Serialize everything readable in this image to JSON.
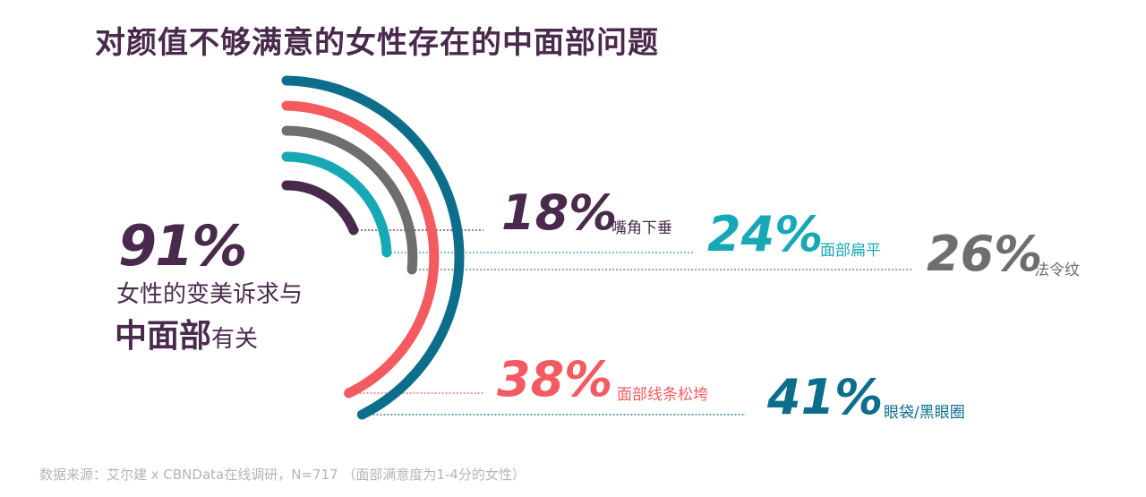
{
  "title": "对颜值不够满意的女性存在的中面部问题",
  "summary": {
    "percent": "91%",
    "line1": "女性的变美诉求与",
    "line2_bold": "中面部",
    "line2_rest": "有关"
  },
  "chart_data": {
    "type": "radial-bar",
    "title": "对颜值不够满意的女性存在的中面部问题",
    "series": [
      {
        "label": "嘴角下垂",
        "value": 18,
        "display": "18%",
        "color": "#4a2a4c"
      },
      {
        "label": "面部扁平",
        "value": 24,
        "display": "24%",
        "color": "#16a9b5"
      },
      {
        "label": "法令纹",
        "value": 26,
        "display": "26%",
        "color": "#6e6e6e"
      },
      {
        "label": "面部线条松垮",
        "value": 38,
        "display": "38%",
        "color": "#f45b61"
      },
      {
        "label": "眼袋/黑眼圈",
        "value": 41,
        "display": "41%",
        "color": "#0d6e8c"
      }
    ]
  },
  "footer": "数据来源：艾尔建 x CBNData在线调研，N=717 （面部满意度为1-4分的女性）"
}
